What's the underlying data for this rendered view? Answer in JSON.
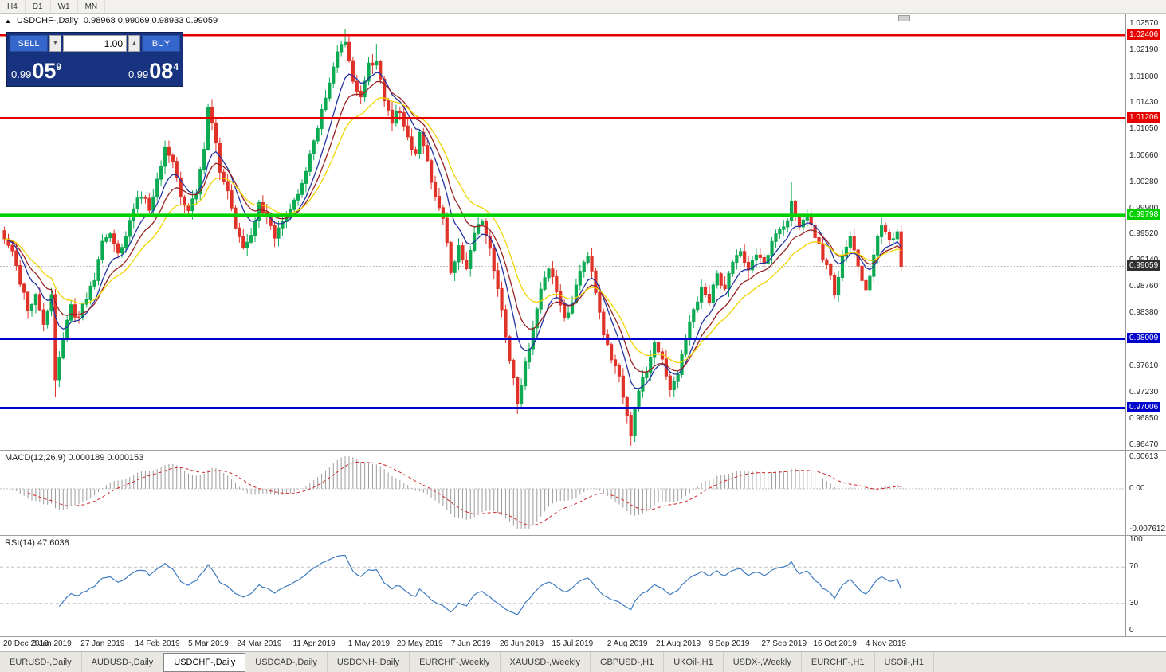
{
  "toolbar": {
    "timeframes": [
      "H4",
      "D1",
      "W1",
      "MN"
    ]
  },
  "icons": {
    "symbol_marker": "▲",
    "volume_decrease": "▼",
    "volume_increase": "▲"
  },
  "chart_header": {
    "symbol": "USDCHF-,Daily",
    "ohlc": "0.98968 0.99069 0.98933 0.99059"
  },
  "trade_panel": {
    "sell_label": "SELL",
    "buy_label": "BUY",
    "volume": "1.00",
    "sell_price": {
      "base": "0.99",
      "big": "05",
      "sup": "9"
    },
    "buy_price": {
      "base": "0.99",
      "big": "08",
      "sup": "4"
    }
  },
  "price_axis": {
    "ticks": [
      "1.02570",
      "1.02190",
      "1.01800",
      "1.01430",
      "1.01050",
      "1.00660",
      "1.00280",
      "0.99900",
      "0.99520",
      "0.99140",
      "0.98760",
      "0.98380",
      "0.97990",
      "0.97610",
      "0.97230",
      "0.96850",
      "0.96470"
    ],
    "tick_values": [
      1.0257,
      1.0219,
      1.018,
      1.0143,
      1.0105,
      1.0066,
      1.0028,
      0.999,
      0.9952,
      0.9914,
      0.9876,
      0.9838,
      0.9799,
      0.9761,
      0.9723,
      0.9685,
      0.9647
    ]
  },
  "levels": [
    {
      "label": "1.02406",
      "value": 1.02406,
      "type": "resistance",
      "color": "#e60000",
      "width": 2.5
    },
    {
      "label": "1.01206",
      "value": 1.01206,
      "type": "resistance",
      "color": "#e60000",
      "width": 2.5
    },
    {
      "label": "0.99798",
      "value": 0.99798,
      "type": "pivot",
      "color": "#00d000",
      "width": 4
    },
    {
      "label": "0.98009",
      "value": 0.98009,
      "type": "support",
      "color": "#0000cc",
      "width": 3
    },
    {
      "label": "0.97006",
      "value": 0.97006,
      "type": "support",
      "color": "#0000cc",
      "width": 3
    }
  ],
  "current_price": {
    "label": "0.99059",
    "value": 0.99059
  },
  "macd": {
    "label": "MACD(12,26,9) 0.000189 0.000153",
    "fast": 12,
    "slow": 26,
    "signal": 9,
    "axis_labels": [
      "0.00613",
      "0.00",
      "-0.007612"
    ],
    "max": 0.00613,
    "min": -0.007612,
    "histogram_color": "#9c9c9c",
    "signal_color": "#cc2a2a"
  },
  "rsi": {
    "label": "RSI(14) 47.6038",
    "period": 14,
    "value": 47.6038,
    "axis_labels": [
      "100",
      "70",
      "30",
      "0"
    ],
    "axis_values": [
      100,
      70,
      30,
      0
    ],
    "level_lines": [
      70,
      30
    ],
    "line_color": "#3f7cc0"
  },
  "date_axis": [
    {
      "label": "20 Dec 2018",
      "bar": 0
    },
    {
      "label": "8 Jan 2019",
      "bar": 12
    },
    {
      "label": "27 Jan 2019",
      "bar": 25
    },
    {
      "label": "14 Feb 2019",
      "bar": 39
    },
    {
      "label": "5 Mar 2019",
      "bar": 52
    },
    {
      "label": "24 Mar 2019",
      "bar": 65
    },
    {
      "label": "11 Apr 2019",
      "bar": 79
    },
    {
      "label": "1 May 2019",
      "bar": 93
    },
    {
      "label": "20 May 2019",
      "bar": 106
    },
    {
      "label": "7 Jun 2019",
      "bar": 119
    },
    {
      "label": "26 Jun 2019",
      "bar": 132
    },
    {
      "label": "15 Jul 2019",
      "bar": 145
    },
    {
      "label": "2 Aug 2019",
      "bar": 159
    },
    {
      "label": "21 Aug 2019",
      "bar": 172
    },
    {
      "label": "9 Sep 2019",
      "bar": 185
    },
    {
      "label": "27 Sep 2019",
      "bar": 199
    },
    {
      "label": "16 Oct 2019",
      "bar": 212
    },
    {
      "label": "4 Nov 2019",
      "bar": 225
    }
  ],
  "tabs": [
    {
      "label": "EURUSD-,Daily",
      "active": false
    },
    {
      "label": "AUDUSD-,Daily",
      "active": false
    },
    {
      "label": "USDCHF-,Daily",
      "active": true
    },
    {
      "label": "USDCAD-,Daily",
      "active": false
    },
    {
      "label": "USDCNH-,Daily",
      "active": false
    },
    {
      "label": "EURCHF-,Weekly",
      "active": false
    },
    {
      "label": "XAUUSD-,Weekly",
      "active": false
    },
    {
      "label": "GBPUSD-,H1",
      "active": false
    },
    {
      "label": "UKOil-,H1",
      "active": false
    },
    {
      "label": "USDX-,Weekly",
      "active": false
    },
    {
      "label": "EURCHF-,H1",
      "active": false
    },
    {
      "label": "USOil-,H1",
      "active": false
    }
  ],
  "chart_data": {
    "type": "candlestick",
    "symbol": "USDCHF",
    "timeframe": "Daily",
    "bars": 230,
    "price_range": [
      0.964,
      1.0272
    ],
    "up_color": "#0caa52",
    "down_color": "#e03328",
    "support_resistance": [
      1.02406,
      1.01206,
      0.99798,
      0.98009,
      0.97006
    ],
    "ma_lines": [
      {
        "name": "fast-ma",
        "period": 8,
        "color": "#2333a0"
      },
      {
        "name": "mid-ma",
        "period": 13,
        "color": "#992222"
      },
      {
        "name": "slow-ma",
        "period": 21,
        "color": "#f0d400"
      }
    ],
    "close_anchors": [
      [
        0,
        0.995
      ],
      [
        2,
        0.9925
      ],
      [
        4,
        0.9885
      ],
      [
        6,
        0.9845
      ],
      [
        8,
        0.9862
      ],
      [
        10,
        0.9825
      ],
      [
        12,
        0.9862
      ],
      [
        13,
        0.9745
      ],
      [
        15,
        0.98
      ],
      [
        17,
        0.9845
      ],
      [
        19,
        0.983
      ],
      [
        21,
        0.9862
      ],
      [
        23,
        0.9888
      ],
      [
        25,
        0.994
      ],
      [
        27,
        0.9958
      ],
      [
        29,
        0.9922
      ],
      [
        31,
        0.9945
      ],
      [
        33,
        0.999
      ],
      [
        35,
        1.001
      ],
      [
        37,
        0.9988
      ],
      [
        39,
        1.0035
      ],
      [
        41,
        1.0075
      ],
      [
        43,
        1.0058
      ],
      [
        45,
        1.0005
      ],
      [
        47,
        0.9988
      ],
      [
        49,
        1.0012
      ],
      [
        51,
        1.008
      ],
      [
        52,
        1.0135
      ],
      [
        53,
        1.0115
      ],
      [
        55,
        1.0045
      ],
      [
        57,
        1.0012
      ],
      [
        59,
        0.9965
      ],
      [
        61,
        0.9938
      ],
      [
        63,
        0.9952
      ],
      [
        65,
        1.0
      ],
      [
        67,
        0.9975
      ],
      [
        69,
        0.995
      ],
      [
        71,
        0.9968
      ],
      [
        73,
        0.999
      ],
      [
        75,
        1.0012
      ],
      [
        77,
        1.0045
      ],
      [
        79,
        1.0085
      ],
      [
        81,
        1.013
      ],
      [
        83,
        1.0175
      ],
      [
        85,
        1.0215
      ],
      [
        87,
        1.0232
      ],
      [
        89,
        1.0178
      ],
      [
        91,
        1.0152
      ],
      [
        93,
        1.0195
      ],
      [
        95,
        1.0205
      ],
      [
        97,
        1.0148
      ],
      [
        99,
        1.0118
      ],
      [
        101,
        1.0132
      ],
      [
        103,
        1.0092
      ],
      [
        105,
        1.0068
      ],
      [
        106,
        1.0105
      ],
      [
        108,
        1.0055
      ],
      [
        110,
        1.0008
      ],
      [
        112,
        0.9978
      ],
      [
        114,
        0.99
      ],
      [
        116,
        0.9935
      ],
      [
        118,
        0.9902
      ],
      [
        120,
        0.9958
      ],
      [
        122,
        0.9975
      ],
      [
        124,
        0.993
      ],
      [
        126,
        0.987
      ],
      [
        128,
        0.9808
      ],
      [
        130,
        0.9742
      ],
      [
        131,
        0.9705
      ],
      [
        133,
        0.9762
      ],
      [
        135,
        0.9818
      ],
      [
        137,
        0.9868
      ],
      [
        139,
        0.9905
      ],
      [
        141,
        0.987
      ],
      [
        143,
        0.9832
      ],
      [
        145,
        0.9855
      ],
      [
        147,
        0.9895
      ],
      [
        149,
        0.9922
      ],
      [
        151,
        0.9872
      ],
      [
        153,
        0.9812
      ],
      [
        155,
        0.9772
      ],
      [
        157,
        0.9748
      ],
      [
        159,
        0.9695
      ],
      [
        160,
        0.9662
      ],
      [
        162,
        0.973
      ],
      [
        164,
        0.9755
      ],
      [
        166,
        0.979
      ],
      [
        168,
        0.9772
      ],
      [
        170,
        0.9722
      ],
      [
        172,
        0.9748
      ],
      [
        174,
        0.98
      ],
      [
        176,
        0.984
      ],
      [
        178,
        0.987
      ],
      [
        180,
        0.9856
      ],
      [
        182,
        0.9892
      ],
      [
        184,
        0.9872
      ],
      [
        186,
        0.9915
      ],
      [
        188,
        0.993
      ],
      [
        190,
        0.9898
      ],
      [
        192,
        0.9925
      ],
      [
        194,
        0.9908
      ],
      [
        196,
        0.9942
      ],
      [
        198,
        0.9958
      ],
      [
        200,
        0.9972
      ],
      [
        201,
        1.0002
      ],
      [
        203,
        0.9962
      ],
      [
        205,
        0.9985
      ],
      [
        207,
        0.995
      ],
      [
        209,
        0.992
      ],
      [
        211,
        0.9888
      ],
      [
        212,
        0.9868
      ],
      [
        214,
        0.992
      ],
      [
        216,
        0.995
      ],
      [
        218,
        0.9906
      ],
      [
        220,
        0.9872
      ],
      [
        222,
        0.992
      ],
      [
        224,
        0.9968
      ],
      [
        226,
        0.9942
      ],
      [
        228,
        0.9952
      ],
      [
        229,
        0.99059
      ]
    ],
    "wick_overrides": [
      [
        13,
        "low",
        0.9716
      ],
      [
        52,
        "high",
        1.0142
      ],
      [
        87,
        "high",
        1.025
      ],
      [
        95,
        "high",
        1.0228
      ],
      [
        131,
        "low",
        0.9692
      ],
      [
        160,
        "low",
        0.9646
      ],
      [
        201,
        "high",
        1.0028
      ]
    ]
  }
}
